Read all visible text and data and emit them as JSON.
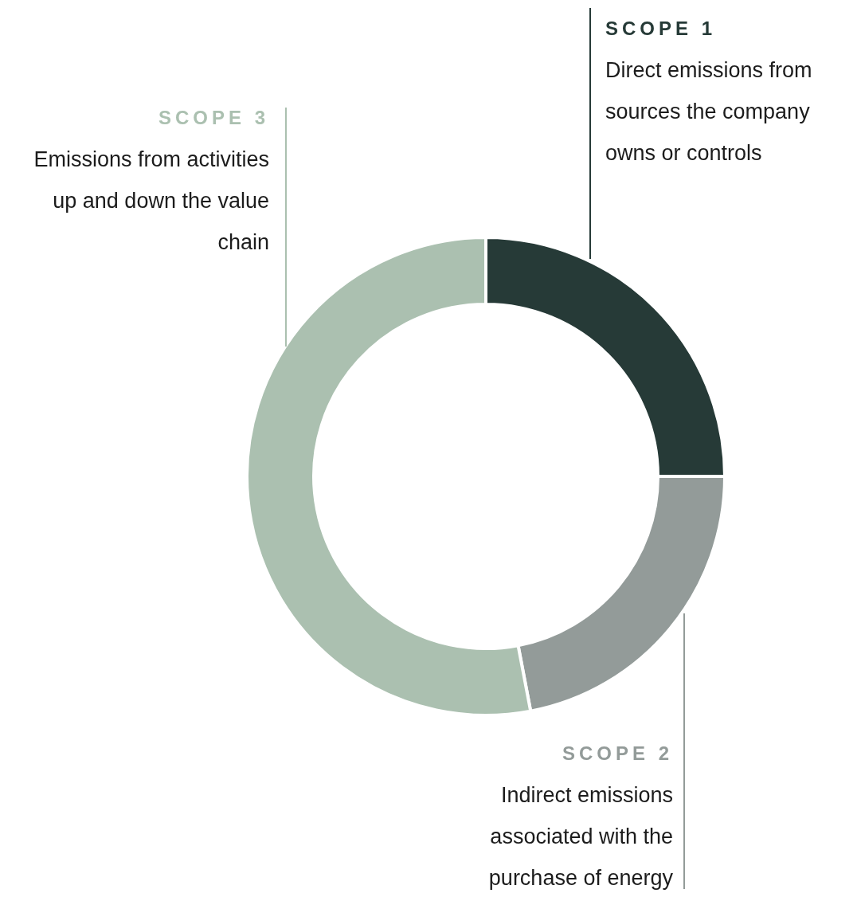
{
  "chart_data": {
    "type": "donut",
    "categories": [
      "SCOPE 1",
      "SCOPE 2",
      "SCOPE 3"
    ],
    "values": [
      25,
      22,
      53
    ],
    "colors": [
      "#263a37",
      "#939b99",
      "#abc0b0"
    ],
    "annotations": [
      "Direct emissions from sources the company owns or controls",
      "Indirect emissions associated with the purchase of energy",
      "Emissions from activities up and down the value chain"
    ],
    "legend": false
  }
}
